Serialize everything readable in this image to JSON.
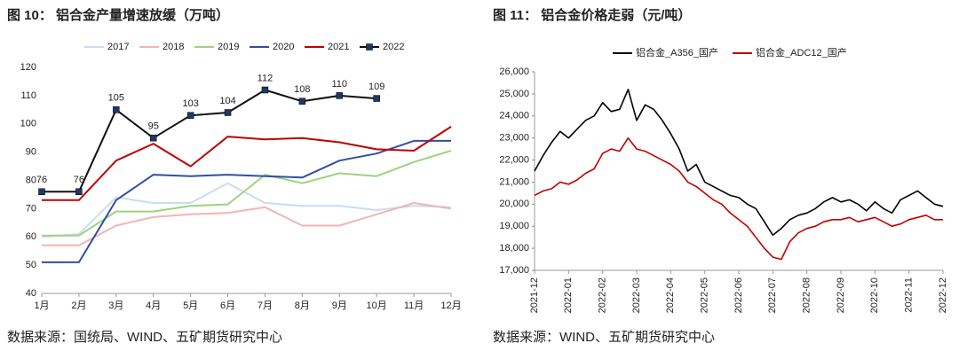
{
  "chart_data": [
    {
      "type": "line",
      "title": "图 10：  铝合金产量增速放缓（万吨）",
      "source": "数据来源：国统局、WIND、五矿期货研究中心",
      "categories": [
        "1月",
        "2月",
        "3月",
        "4月",
        "5月",
        "6月",
        "7月",
        "8月",
        "9月",
        "10月",
        "11月",
        "12月"
      ],
      "ylim": [
        40,
        120
      ],
      "yticks": [
        40,
        50,
        60,
        70,
        80,
        90,
        100,
        110,
        120
      ],
      "grid": false,
      "legend": "top",
      "series": [
        {
          "name": "2017",
          "color": "#c9dcf0",
          "values": [
            60,
            61,
            74,
            72,
            72,
            79,
            72,
            71,
            71,
            69.5,
            71,
            70.5
          ]
        },
        {
          "name": "2018",
          "color": "#f2b5b5",
          "values": [
            57,
            57,
            64,
            67,
            68,
            68.5,
            70.5,
            64,
            64,
            68,
            72,
            70
          ]
        },
        {
          "name": "2019",
          "color": "#9fd37f",
          "values": [
            60.5,
            60.5,
            69,
            69,
            71,
            71.5,
            82,
            79,
            82.5,
            81.5,
            86.5,
            90.5
          ]
        },
        {
          "name": "2020",
          "color": "#2f4fa2",
          "values": [
            51,
            51,
            73,
            82,
            81.5,
            82,
            81.5,
            81,
            87,
            89.5,
            94,
            94
          ]
        },
        {
          "name": "2021",
          "color": "#c00000",
          "values": [
            73,
            73,
            87,
            93,
            85,
            95.5,
            94.5,
            95,
            93.5,
            91,
            90.5,
            99
          ]
        },
        {
          "name": "2022",
          "color": "#111111",
          "marker_color": "#1f3864",
          "markers": true,
          "data_labels": true,
          "values": [
            76,
            76,
            105,
            95,
            103,
            104,
            112,
            108,
            110,
            109,
            null,
            null
          ]
        }
      ]
    },
    {
      "type": "line",
      "title": "图 11：  铝合金价格走弱（元/吨）",
      "source": "数据来源：WIND、五矿期货研究中心",
      "categories": [
        "2021-12",
        null,
        null,
        null,
        "2022-01",
        null,
        null,
        null,
        "2022-02",
        null,
        null,
        null,
        "2022-03",
        null,
        null,
        null,
        "2022-04",
        null,
        null,
        null,
        "2022-05",
        null,
        null,
        null,
        "2022-06",
        null,
        null,
        null,
        "2022-07",
        null,
        null,
        null,
        "2022-08",
        null,
        null,
        null,
        "2022-09",
        null,
        null,
        null,
        "2022-10",
        null,
        null,
        null,
        "2022-11",
        null,
        null,
        null,
        "2022-12"
      ],
      "ylim": [
        17000,
        26000
      ],
      "yticks": [
        {
          "value": 17000,
          "label": "17,000"
        },
        {
          "value": 18000,
          "label": "18,000"
        },
        {
          "value": 19000,
          "label": "19,000"
        },
        {
          "value": 20000,
          "label": "20,000"
        },
        {
          "value": 21000,
          "label": "21,000"
        },
        {
          "value": 22000,
          "label": "22,000"
        },
        {
          "value": 23000,
          "label": "23,000"
        },
        {
          "value": 24000,
          "label": "24,000"
        },
        {
          "value": 25000,
          "label": "25,000"
        },
        {
          "value": 26000,
          "label": "26,000"
        }
      ],
      "grid": false,
      "legend": "top",
      "series": [
        {
          "name": "铝合金_A356_国产",
          "color": "#000000",
          "values": [
            21500,
            22200,
            22800,
            23300,
            23000,
            23400,
            23800,
            24000,
            24600,
            24200,
            24300,
            25200,
            23800,
            24500,
            24300,
            23800,
            23200,
            22500,
            21500,
            21800,
            21000,
            20800,
            20600,
            20400,
            20300,
            20000,
            19800,
            19200,
            18600,
            18900,
            19300,
            19500,
            19600,
            19800,
            20100,
            20300,
            20100,
            20200,
            20000,
            19700,
            20100,
            19800,
            19600,
            20200,
            20400,
            20600,
            20300,
            20000,
            19900
          ]
        },
        {
          "name": "铝合金_ADC12_国产",
          "color": "#c00000",
          "values": [
            20400,
            20600,
            20700,
            21000,
            20900,
            21100,
            21400,
            21600,
            22300,
            22500,
            22400,
            23000,
            22500,
            22400,
            22200,
            22000,
            21800,
            21500,
            21000,
            20800,
            20500,
            20200,
            20000,
            19600,
            19300,
            19000,
            18500,
            18000,
            17600,
            17500,
            18300,
            18700,
            18900,
            19000,
            19200,
            19300,
            19300,
            19400,
            19200,
            19300,
            19400,
            19200,
            19000,
            19100,
            19300,
            19400,
            19500,
            19300,
            19300
          ]
        }
      ]
    }
  ]
}
